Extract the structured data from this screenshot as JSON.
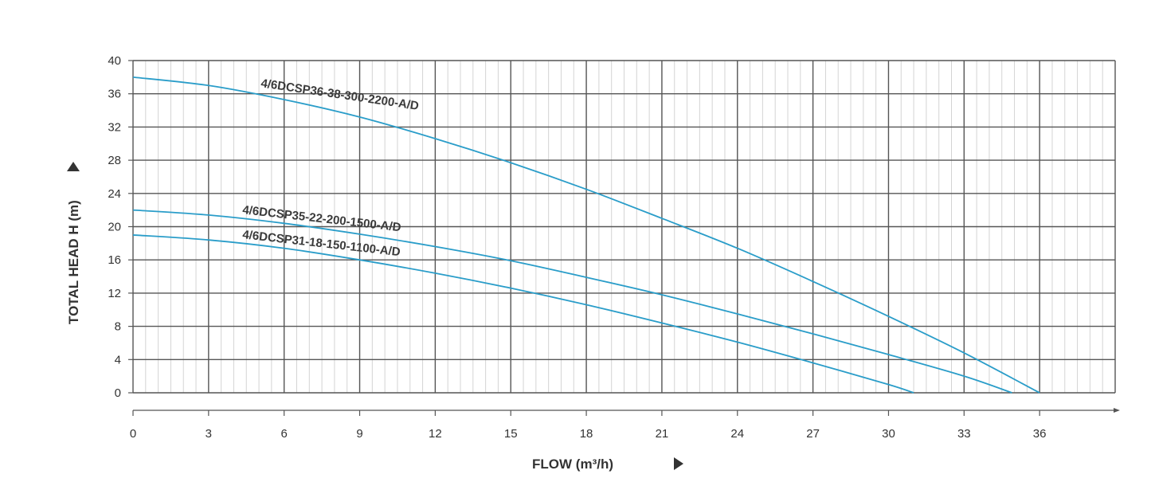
{
  "chart_data": {
    "type": "line",
    "title": "",
    "xlabel": "FLOW (m³/h)",
    "ylabel": "TOTAL HEAD H (m)",
    "xlim": [
      0,
      39
    ],
    "ylim": [
      0,
      40
    ],
    "x_ticks": [
      0,
      3,
      6,
      9,
      12,
      15,
      18,
      21,
      24,
      27,
      30,
      33,
      36
    ],
    "y_ticks": [
      0,
      4,
      8,
      12,
      16,
      20,
      24,
      28,
      32,
      36,
      40
    ],
    "grid": true,
    "colors": {
      "series": "#2a9dc9",
      "major_grid": "#555555",
      "minor_grid": "#d4d4d4",
      "axis": "#555555"
    },
    "series": [
      {
        "name": "4/6DCSP36-38-300-2200-A/D",
        "x": [
          0,
          3,
          6,
          9,
          12,
          15,
          18,
          21,
          24,
          27,
          30,
          33,
          36
        ],
        "y": [
          38,
          37,
          35.3,
          33.2,
          30.6,
          27.7,
          24.5,
          21,
          17.4,
          13.4,
          9.2,
          4.8,
          0
        ]
      },
      {
        "name": "4/6DCSP35-22-200-1500-A/D",
        "x": [
          0,
          3,
          6,
          9,
          12,
          15,
          18,
          21,
          24,
          27,
          30,
          33,
          34.9
        ],
        "y": [
          22,
          21.4,
          20.4,
          19.1,
          17.6,
          15.9,
          13.9,
          11.8,
          9.5,
          7.1,
          4.6,
          2,
          0
        ]
      },
      {
        "name": "4/6DCSP31-18-150-1100-A/D",
        "x": [
          0,
          3,
          6,
          9,
          12,
          15,
          18,
          21,
          24,
          27,
          30,
          31
        ],
        "y": [
          19,
          18.4,
          17.4,
          16,
          14.4,
          12.6,
          10.6,
          8.4,
          6.1,
          3.6,
          1,
          0
        ]
      }
    ]
  }
}
